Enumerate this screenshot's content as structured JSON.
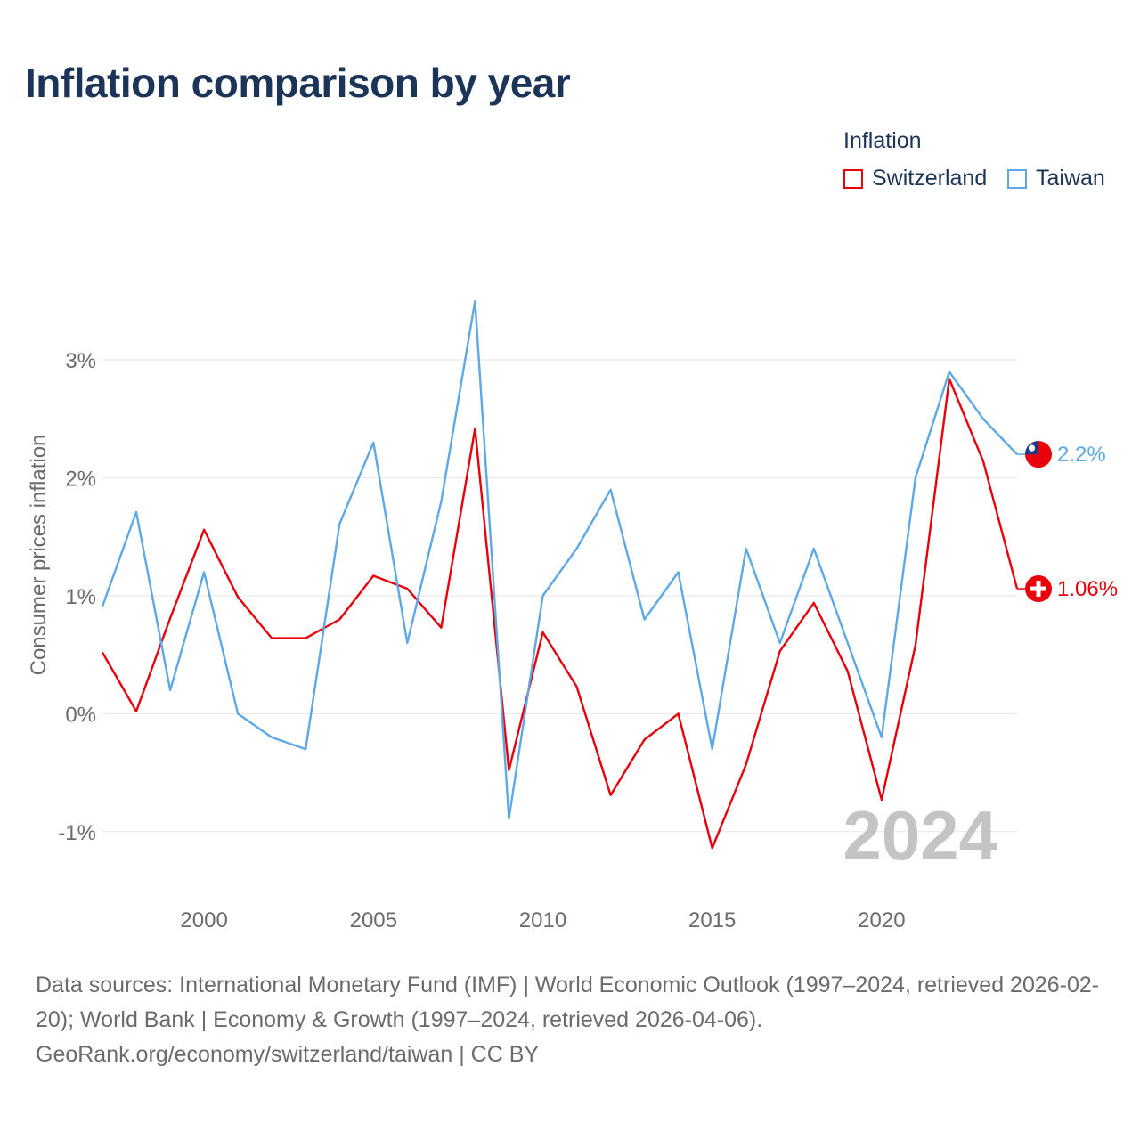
{
  "title": "Inflation comparison by year",
  "legend": {
    "title": "Inflation",
    "items": [
      {
        "label": "Switzerland",
        "color": "#e8000b"
      },
      {
        "label": "Taiwan",
        "color": "#5da8e5"
      }
    ]
  },
  "year_watermark": "2024",
  "sources": {
    "line1": "Data sources: International Monetary Fund (IMF) | World Economic Outlook (1997–2024, retrieved 2026-02-20); World Bank | Economy & Growth (1997–2024, retrieved 2026-04-06).",
    "line2": "GeoRank.org/economy/switzerland/taiwan | CC BY"
  },
  "chart_data": {
    "type": "line",
    "title": "Inflation comparison by year",
    "xlabel": "",
    "ylabel": "Consumer prices inflation",
    "xlim": [
      1997,
      2024
    ],
    "ylim": [
      -1.5,
      3.9
    ],
    "grid": true,
    "legend_position": "top-right",
    "x_ticks": [
      2000,
      2005,
      2010,
      2015,
      2020
    ],
    "x_tick_labels": [
      "2000",
      "2005",
      "2010",
      "2015",
      "2020"
    ],
    "y_ticks": [
      -1,
      0,
      1,
      2,
      3
    ],
    "y_tick_labels": [
      "-1%",
      "0%",
      "1%",
      "2%",
      "3%"
    ],
    "x": [
      1997,
      1998,
      1999,
      2000,
      2001,
      2002,
      2003,
      2004,
      2005,
      2006,
      2007,
      2008,
      2009,
      2010,
      2011,
      2012,
      2013,
      2014,
      2015,
      2016,
      2017,
      2018,
      2019,
      2020,
      2021,
      2022,
      2023,
      2024
    ],
    "series": [
      {
        "name": "Switzerland",
        "color": "#e8000b",
        "values": [
          0.52,
          0.02,
          0.81,
          1.56,
          0.99,
          0.64,
          0.64,
          0.8,
          1.17,
          1.06,
          0.73,
          2.42,
          -0.48,
          0.69,
          0.23,
          -0.69,
          -0.22,
          0.0,
          -1.14,
          -0.43,
          0.53,
          0.94,
          0.36,
          -0.73,
          0.58,
          2.84,
          2.14,
          1.06
        ],
        "end_label": "1.06%",
        "flag_icon": "switzerland-flag-icon"
      },
      {
        "name": "Taiwan",
        "color": "#5da8e5",
        "values": [
          0.91,
          1.71,
          0.2,
          1.2,
          0.0,
          -0.2,
          -0.3,
          1.61,
          2.3,
          0.6,
          1.8,
          3.5,
          -0.89,
          1.0,
          1.4,
          1.9,
          0.8,
          1.2,
          -0.3,
          1.4,
          0.6,
          1.4,
          0.6,
          -0.2,
          2.0,
          2.9,
          2.5,
          2.2
        ],
        "end_label": "2.2%",
        "flag_icon": "taiwan-flag-icon"
      }
    ]
  }
}
